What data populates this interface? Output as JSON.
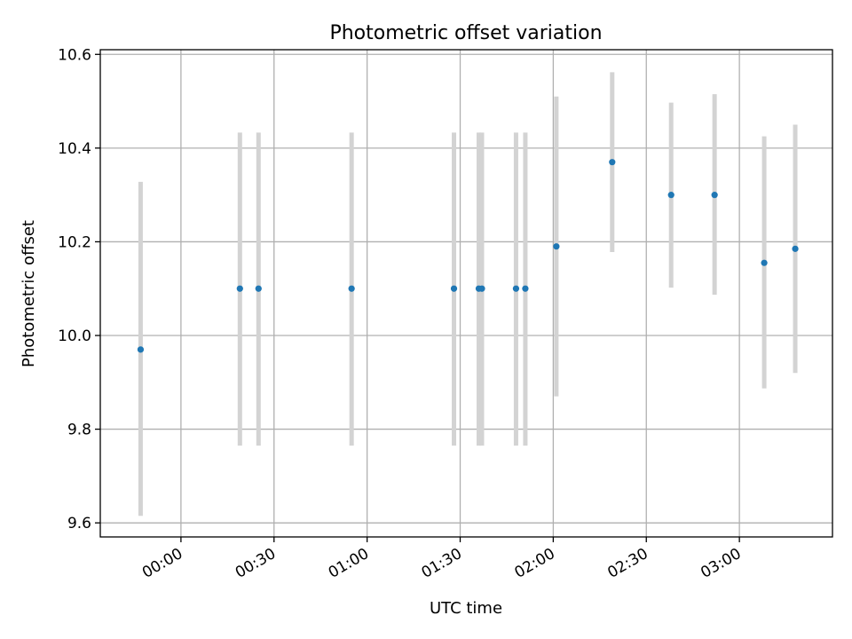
{
  "chart_data": {
    "type": "scatter",
    "title": "Photometric offset variation",
    "xlabel": "UTC time",
    "ylabel": "Photometric offset",
    "x_ticks": [
      "00:00",
      "00:30",
      "01:00",
      "01:30",
      "02:00",
      "02:30",
      "03:00"
    ],
    "x_tick_minutes": [
      0,
      30,
      60,
      90,
      120,
      150,
      180
    ],
    "xlim": [
      "23:34",
      "03:30"
    ],
    "y_ticks": [
      "9.6",
      "9.8",
      "10.0",
      "10.2",
      "10.4",
      "10.6"
    ],
    "y_tick_values": [
      9.6,
      9.8,
      10.0,
      10.2,
      10.4,
      10.6
    ],
    "ylim": [
      9.57,
      10.61
    ],
    "grid": true,
    "colors": {
      "point": "#1f77b4",
      "errorbar": "#d3d3d3",
      "grid": "#b0b0b0"
    },
    "series": [
      {
        "x": [
          "23:47",
          "00:19",
          "00:25",
          "00:55",
          "01:28",
          "01:36",
          "01:37",
          "01:48",
          "01:51",
          "02:01",
          "02:19",
          "02:38",
          "02:52",
          "03:08",
          "03:18"
        ],
        "y": [
          9.97,
          10.1,
          10.1,
          10.1,
          10.1,
          10.1,
          10.1,
          10.1,
          10.1,
          10.19,
          10.37,
          10.3,
          10.3,
          10.155,
          10.185
        ],
        "yerr_low": [
          9.615,
          9.765,
          9.765,
          9.765,
          9.765,
          9.765,
          9.765,
          9.765,
          9.765,
          9.87,
          10.178,
          10.102,
          10.087,
          9.887,
          9.92
        ],
        "yerr_high": [
          10.328,
          10.433,
          10.433,
          10.433,
          10.433,
          10.433,
          10.433,
          10.433,
          10.433,
          10.51,
          10.562,
          10.497,
          10.515,
          10.425,
          10.45
        ]
      }
    ]
  }
}
